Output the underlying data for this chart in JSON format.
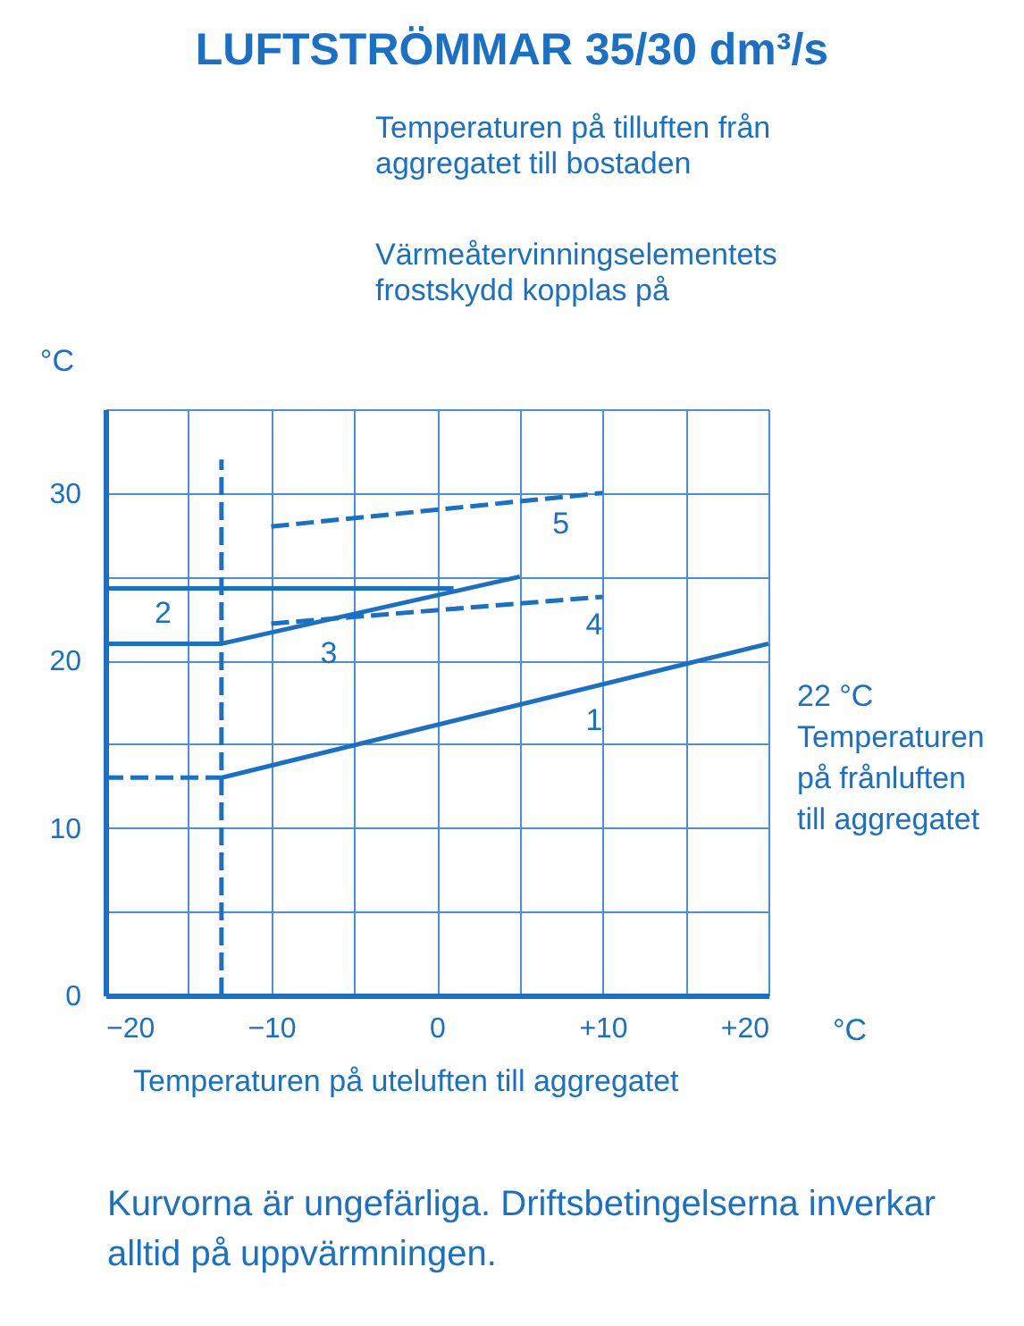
{
  "chart_data": {
    "type": "line",
    "title": "LUFTSTRÖMMAR 35/30 dm³/s",
    "xlabel": "Temperaturen på uteluften till aggregatet",
    "ylabel": "°C",
    "xlim": [
      -20,
      20
    ],
    "xticks": [
      {
        "value": -20,
        "label": "−20"
      },
      {
        "value": -15,
        "label": null
      },
      {
        "value": -10,
        "label": "−10"
      },
      {
        "value": -5,
        "label": null
      },
      0,
      {
        "value": 5,
        "label": null
      },
      {
        "value": 10,
        "label": "+10"
      },
      {
        "value": 15,
        "label": null
      },
      {
        "value": 20,
        "label": "+20"
      }
    ],
    "ylim": [
      0,
      35
    ],
    "yticks": [
      0,
      {
        "value": 5,
        "label": null
      },
      10,
      {
        "value": 15,
        "label": null
      },
      20,
      {
        "value": 25,
        "label": null
      },
      30,
      {
        "value": 35,
        "label": null
      }
    ],
    "grid": true,
    "series": [
      {
        "color": "#1a70c4",
        "x": [
          -13,
          20
        ],
        "values": [
          13,
          21
        ],
        "line_style": "solid"
      },
      {
        "color": "#1a70c4",
        "x": [
          -20,
          -13
        ],
        "values": [
          13,
          13
        ],
        "line_style": "dashed"
      },
      {
        "color": "#1a70c4",
        "x": [
          -20,
          1
        ],
        "values": [
          24.3,
          24.3
        ],
        "line_style": "solid"
      },
      {
        "color": "#1a70c4",
        "x": [
          -20,
          -13,
          5
        ],
        "values": [
          21,
          21,
          25
        ],
        "line_style": "solid"
      },
      {
        "color": "#1a70c4",
        "x": [
          -10,
          10
        ],
        "values": [
          22.2,
          23.8
        ],
        "line_style": "dashed"
      },
      {
        "color": "#1a70c4",
        "x": [
          -10,
          10
        ],
        "values": [
          28,
          30
        ],
        "line_style": "dashed"
      },
      {
        "color": "#1a70c4",
        "x": [
          -13,
          -13
        ],
        "values": [
          0,
          32
        ],
        "line_style": "dashed"
      }
    ],
    "annotations": [
      "Temperaturen på tilluften från aggregatet till bostaden",
      "Värmeåtervinningselementets frostskydd kopplas på",
      "22 °C Temperaturen på frånluften till aggregatet",
      "°C",
      "Kurvorna är ungefärliga. Driftsbetingelserna inverkar alltid på uppvärmningen.",
      {
        "text": "1",
        "x": 8,
        "y": 17.9
      },
      {
        "text": "2",
        "x": -18,
        "y": 24.3
      },
      {
        "text": "3",
        "x": -8,
        "y": 21.9
      },
      {
        "text": "4",
        "x": 8,
        "y": 23.6
      },
      {
        "text": "5",
        "x": 6,
        "y": 29.6
      }
    ]
  }
}
